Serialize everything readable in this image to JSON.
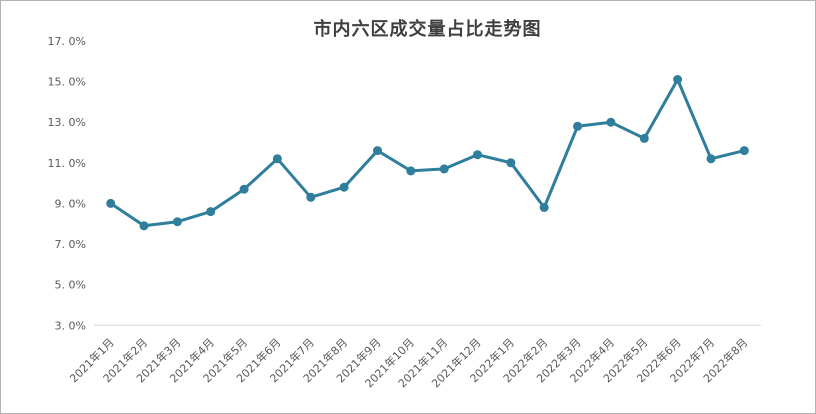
{
  "chart_data": {
    "type": "line",
    "title": "市内六区成交量占比走势图",
    "categories": [
      "2021年1月",
      "2021年2月",
      "2021年3月",
      "2021年4月",
      "2021年5月",
      "2021年6月",
      "2021年7月",
      "2021年8月",
      "2021年9月",
      "2021年10月",
      "2021年11月",
      "2021年12月",
      "2022年1月",
      "2022年2月",
      "2022年3月",
      "2022年4月",
      "2022年5月",
      "2022年6月",
      "2022年7月",
      "2022年8月"
    ],
    "values": [
      9.0,
      7.9,
      8.1,
      8.6,
      9.7,
      11.2,
      9.3,
      9.8,
      11.6,
      10.6,
      10.7,
      11.4,
      11.0,
      8.8,
      12.8,
      13.0,
      12.2,
      15.1,
      11.2,
      11.6
    ],
    "unit": "%",
    "xlabel": "",
    "ylabel": "",
    "ylim": [
      3.0,
      17.0
    ],
    "ytick_step": 2.0,
    "yticks": [
      {
        "value": 17.0,
        "label": "17. 0%"
      },
      {
        "value": 15.0,
        "label": "15. 0%"
      },
      {
        "value": 13.0,
        "label": "13. 0%"
      },
      {
        "value": 11.0,
        "label": "11. 0%"
      },
      {
        "value": 9.0,
        "label": "9. 0%"
      },
      {
        "value": 7.0,
        "label": "7. 0%"
      },
      {
        "value": 5.0,
        "label": "5. 0%"
      },
      {
        "value": 3.0,
        "label": "3. 0%"
      }
    ],
    "grid": false,
    "legend": false,
    "line_color": "#2e7e9c",
    "marker": "circle",
    "axis_line_color": "#d6d6d6",
    "tick_label_color": "#595959",
    "title_color": "#3f3f3f",
    "frame_border_color": "#b3b3b3"
  }
}
